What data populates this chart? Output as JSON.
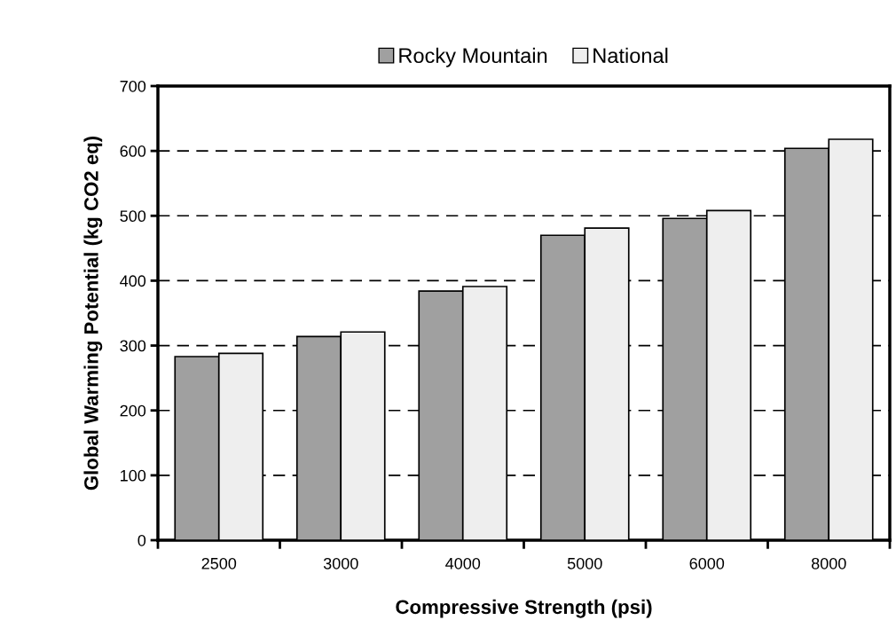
{
  "chart_data": {
    "type": "bar",
    "xlabel": "Compressive Strength (psi)",
    "ylabel": "Global Warming Potential (kg CO2 eq)",
    "categories": [
      "2500",
      "3000",
      "4000",
      "5000",
      "6000",
      "8000"
    ],
    "series": [
      {
        "name": "Rocky Mountain",
        "color": "#a0a0a0",
        "values": [
          283,
          314,
          384,
          470,
          496,
          604
        ]
      },
      {
        "name": "National",
        "color": "#eeeeee",
        "values": [
          288,
          321,
          391,
          481,
          508,
          618
        ]
      }
    ],
    "ylim": [
      0,
      700
    ],
    "yticks": [
      0,
      100,
      200,
      300,
      400,
      500,
      600,
      700
    ],
    "grid": "y",
    "line_style": "dashed",
    "legend": "top"
  }
}
